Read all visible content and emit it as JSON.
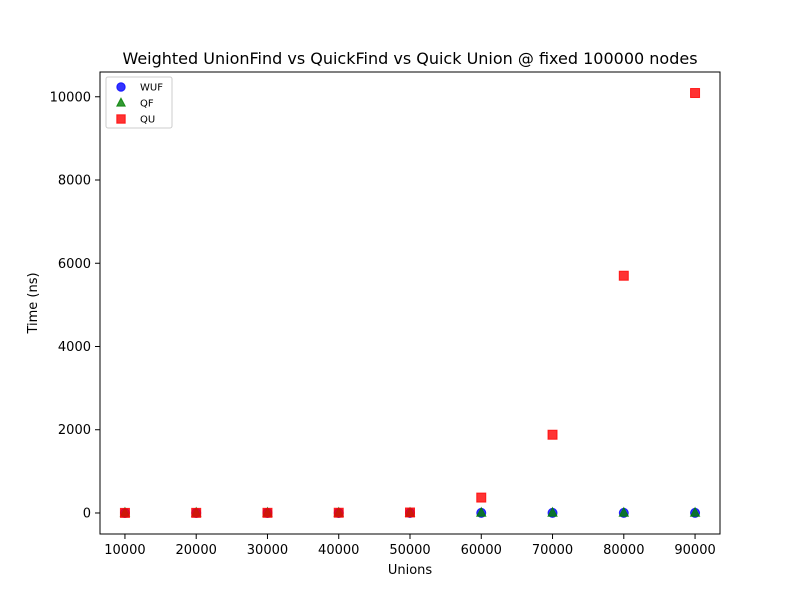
{
  "chart_data": {
    "type": "scatter",
    "title": "Weighted UnionFind vs QuickFind vs Quick Union  @ fixed 100000 nodes",
    "xlabel": "Unions",
    "ylabel": "Time (ns)",
    "xlim": [
      6500,
      93500
    ],
    "ylim": [
      -505,
      10595
    ],
    "xticks": [
      10000,
      20000,
      30000,
      40000,
      50000,
      60000,
      70000,
      80000,
      90000
    ],
    "yticks": [
      0,
      2000,
      4000,
      6000,
      8000,
      10000
    ],
    "grid": false,
    "legend_position": "top-left",
    "x": [
      10000,
      20000,
      30000,
      40000,
      50000,
      60000,
      70000,
      80000,
      90000
    ],
    "series": [
      {
        "name": "WUF",
        "marker": "circle",
        "color": "#0000ff",
        "values": [
          1,
          1,
          1,
          1,
          1,
          2,
          2,
          2,
          2
        ]
      },
      {
        "name": "QF",
        "marker": "triangle",
        "color": "#008000",
        "values": [
          3,
          3,
          3,
          3,
          3,
          3,
          3,
          3,
          3
        ]
      },
      {
        "name": "QU",
        "marker": "square",
        "color": "#ff0000",
        "values": [
          2,
          3,
          4,
          6,
          12,
          370,
          1880,
          5700,
          10090
        ]
      }
    ]
  }
}
